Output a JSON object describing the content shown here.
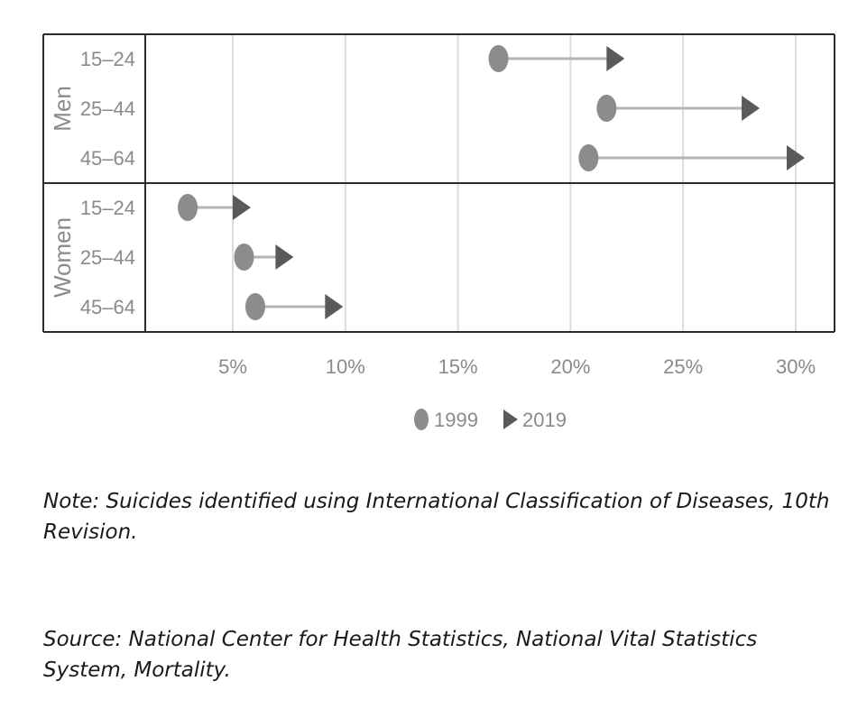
{
  "chart_data": {
    "type": "dumbbell",
    "x_tick_labels": [
      "5%",
      "10%",
      "15%",
      "20%",
      "25%",
      "30%"
    ],
    "x_ticks": [
      5,
      10,
      15,
      20,
      25,
      30
    ],
    "xlim": [
      0.5,
      31.5
    ],
    "groups": [
      {
        "name": "Men",
        "rows": [
          {
            "label": "15–24",
            "v1999": 16.8,
            "v2019": 22.0
          },
          {
            "label": "25–44",
            "v1999": 21.6,
            "v2019": 28.0
          },
          {
            "label": "45–64",
            "v1999": 20.8,
            "v2019": 30.0
          }
        ]
      },
      {
        "name": "Women",
        "rows": [
          {
            "label": "15–24",
            "v1999": 3.0,
            "v2019": 5.4
          },
          {
            "label": "25–44",
            "v1999": 5.5,
            "v2019": 7.3
          },
          {
            "label": "45–64",
            "v1999": 6.0,
            "v2019": 9.5
          }
        ]
      }
    ],
    "legend": [
      {
        "key": "v1999",
        "label": "1999",
        "marker": "circle"
      },
      {
        "key": "v2019",
        "label": "2019",
        "marker": "triangle"
      }
    ],
    "colors": {
      "marker_1999": "#8c8c8e",
      "marker_2019": "#5a5a5c",
      "connector": "#b4b4b6",
      "grid": "#dcdcdc",
      "frame": "#2b2b2b"
    }
  },
  "note": "Note: Suicides identified using International Classification of Diseases, 10th Revision.",
  "source": "Source: National Center for Health Statistics, National Vital Statistics System, Mortality."
}
